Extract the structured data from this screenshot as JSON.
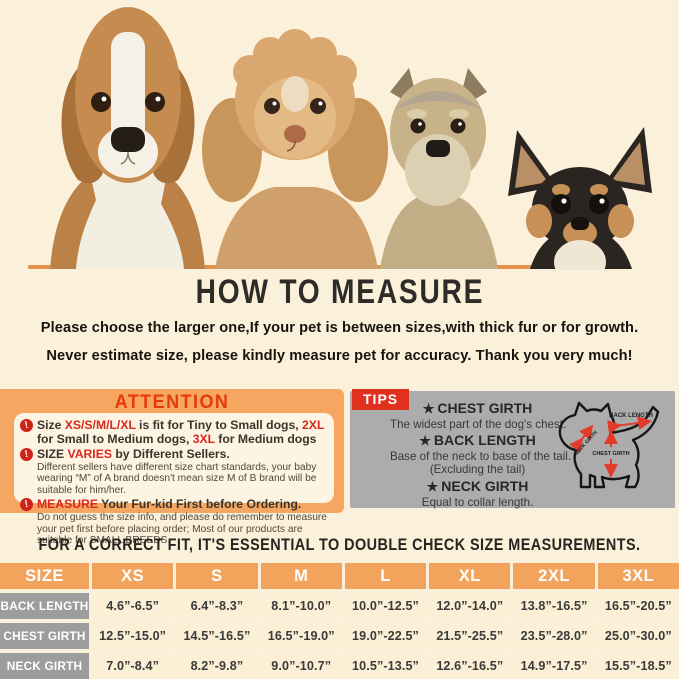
{
  "measure": {
    "title": "HOW TO MEASURE",
    "line1": "Please choose the larger one,If your pet is between sizes,with thick fur or for growth.",
    "line2": "Never estimate size, please kindly measure pet for accuracy. Thank you very much!"
  },
  "attention": {
    "title": "ATTENTION",
    "items": [
      {
        "segments": [
          {
            "t": "Size "
          },
          {
            "t": "XS/S/M/L/XL",
            "r": true
          },
          {
            "t": " is fit for Tiny to Small dogs,  "
          },
          {
            "t": "2XL",
            "r": true
          },
          {
            "t": " for Small to Medium dogs, "
          },
          {
            "t": "3XL",
            "r": true
          },
          {
            "t": " for Medium dogs"
          }
        ],
        "sub": null
      },
      {
        "segments": [
          {
            "t": "SIZE "
          },
          {
            "t": "VARIES",
            "r": true
          },
          {
            "t": " by Different Sellers."
          }
        ],
        "sub": "Different sellers have different size chart standards, your baby wearing “M” of A brand doesn't mean size M of B brand will be suitable for him/her."
      },
      {
        "segments": [
          {
            "t": "MEASURE",
            "r": true
          },
          {
            "t": " Your Fur-kid First before Ordering."
          }
        ],
        "sub": "Do not guess the size info,  and please do remember to measure your pet first before placing order; Most of our products are suitable for SMALL BREEDS."
      }
    ]
  },
  "tips": {
    "label": "TIPS",
    "items": [
      {
        "title": "CHEST GIRTH",
        "desc": "The widest part of the dog's chest."
      },
      {
        "title": "BACK LENGTH",
        "desc": "Base of the neck to base of the tail.",
        "desc2": "(Excluding the tail)"
      },
      {
        "title": "NECK GIRTH",
        "desc": "Equal to collar length."
      }
    ],
    "diagram_labels": {
      "back": "BACK LENGTH",
      "neck": "NECK GIRTH",
      "chest": "CHEST GIRTH"
    }
  },
  "fit_note": "FOR A CORRECT FIT, IT'S ESSENTIAL TO DOUBLE CHECK SIZE MEASUREMENTS.",
  "hero": {
    "dogs": [
      "beagle",
      "poodle",
      "schnauzer",
      "chihuahua"
    ]
  },
  "size_chart": {
    "type": "table",
    "columns": [
      "SIZE",
      "XS",
      "S",
      "M",
      "L",
      "XL",
      "2XL",
      "3XL"
    ],
    "rows": [
      {
        "label": "BACK LENGTH",
        "values": [
          "4.6”-6.5”",
          "6.4”-8.3”",
          "8.1”-10.0”",
          "10.0”-12.5”",
          "12.0”-14.0”",
          "13.8”-16.5”",
          "16.5”-20.5”"
        ]
      },
      {
        "label": "CHEST GIRTH",
        "values": [
          "12.5”-15.0”",
          "14.5”-16.5”",
          "16.5”-19.0”",
          "19.0”-22.5”",
          "21.5”-25.5”",
          "23.5”-28.0”",
          "25.0”-30.0”"
        ]
      },
      {
        "label": "NECK GIRTH",
        "values": [
          "7.0”-8.4”",
          "8.2”-9.8”",
          "9.0”-10.7”",
          "10.5”-13.5”",
          "12.6”-16.5”",
          "14.9”-17.5”",
          "15.5”-18.5”"
        ]
      }
    ]
  },
  "colors": {
    "page_bg": "#fbf1db",
    "ground_line": "#e5924e",
    "attention_bg": "#f5a660",
    "attention_title": "#e8380d",
    "red_accent": "#d7281d",
    "tips_bg": "#acacac",
    "tips_label_bg": "#e0301e",
    "table_header": "#f2a45c",
    "row_label_gray": "#9d9d9d",
    "cell_bg": "#fbefd5"
  }
}
